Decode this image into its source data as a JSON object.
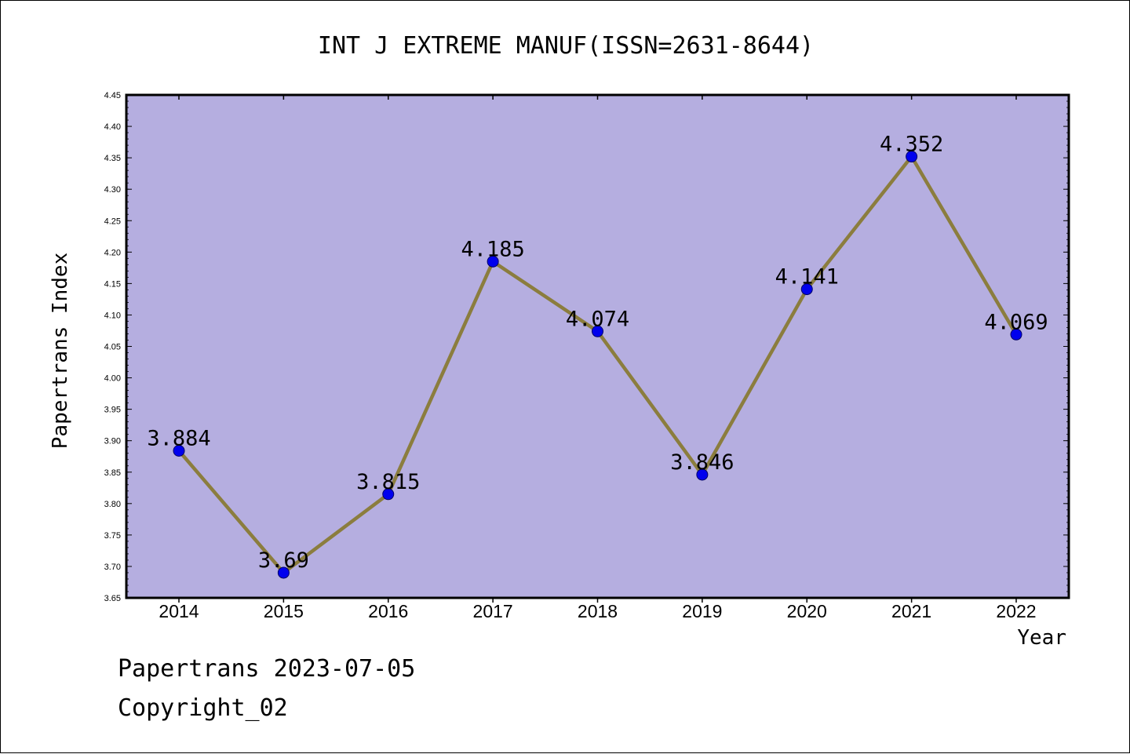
{
  "chart_data": {
    "type": "line",
    "title": "INT J EXTREME MANUF(ISSN=2631-8644)",
    "xlabel": "Year",
    "ylabel": "Papertrans Index",
    "categories": [
      "2014",
      "2015",
      "2016",
      "2017",
      "2018",
      "2019",
      "2020",
      "2021",
      "2022"
    ],
    "values": [
      3.884,
      3.69,
      3.815,
      4.185,
      4.074,
      3.846,
      4.141,
      4.352,
      4.069
    ],
    "data_labels": [
      "3.884",
      "3.69",
      "3.815",
      "4.185",
      "4.074",
      "3.846",
      "4.141",
      "4.352",
      "4.069"
    ],
    "ylim": [
      3.65,
      4.45
    ],
    "yticks": [
      "3.65",
      "3.70",
      "3.75",
      "3.80",
      "3.85",
      "3.90",
      "3.95",
      "4.00",
      "4.05",
      "4.10",
      "4.15",
      "4.20",
      "4.25",
      "4.30",
      "4.35",
      "4.40",
      "4.45"
    ],
    "grid": false,
    "colors": {
      "plot_background": "#b5aee0",
      "line": "#8b7d3e",
      "marker": "#0000ee",
      "marker_edge": "#000066"
    }
  },
  "footer": {
    "line1": "Papertrans 2023-07-05",
    "line2": "Copyright_02"
  }
}
